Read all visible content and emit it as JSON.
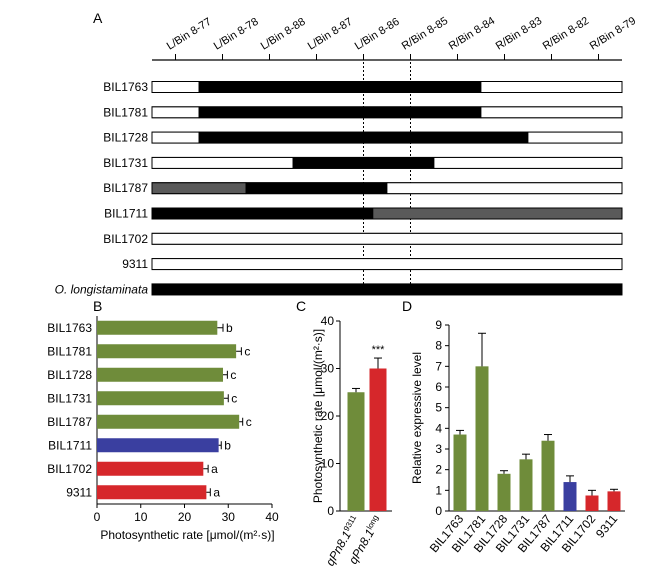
{
  "panelA": {
    "letter": "A",
    "markers": [
      "L/Bin 8-77",
      "L/Bin 8-78",
      "L/Bin 8-88",
      "L/Bin 8-87",
      "L/Bin 8-86",
      "R/Bin 8-85",
      "R/Bin 8-84",
      "R/Bin 8-83",
      "R/Bin 8-82",
      "R/Bin 8-79"
    ],
    "lines": [
      {
        "name": "BIL1763",
        "italic": false,
        "segments": [
          {
            "from": 0,
            "to": 1,
            "color": "white"
          },
          {
            "from": 1,
            "to": 7,
            "color": "black"
          },
          {
            "from": 7,
            "to": 10,
            "color": "white"
          }
        ]
      },
      {
        "name": "BIL1781",
        "italic": false,
        "segments": [
          {
            "from": 0,
            "to": 1,
            "color": "white"
          },
          {
            "from": 1,
            "to": 7,
            "color": "black"
          },
          {
            "from": 7,
            "to": 10,
            "color": "white"
          }
        ]
      },
      {
        "name": "BIL1728",
        "italic": false,
        "segments": [
          {
            "from": 0,
            "to": 1,
            "color": "white"
          },
          {
            "from": 1,
            "to": 8,
            "color": "black"
          },
          {
            "from": 8,
            "to": 10,
            "color": "white"
          }
        ]
      },
      {
        "name": "BIL1731",
        "italic": false,
        "segments": [
          {
            "from": 0,
            "to": 3,
            "color": "white"
          },
          {
            "from": 3,
            "to": 6,
            "color": "black"
          },
          {
            "from": 6,
            "to": 10,
            "color": "white"
          }
        ]
      },
      {
        "name": "BIL1787",
        "italic": false,
        "segments": [
          {
            "from": 0,
            "to": 2,
            "color": "gray"
          },
          {
            "from": 2,
            "to": 5,
            "color": "black"
          },
          {
            "from": 5,
            "to": 10,
            "color": "white"
          }
        ]
      },
      {
        "name": "BIL1711",
        "italic": false,
        "segments": [
          {
            "from": 0,
            "to": 4.7,
            "color": "black"
          },
          {
            "from": 4.7,
            "to": 10,
            "color": "gray"
          }
        ]
      },
      {
        "name": "BIL1702",
        "italic": false,
        "segments": [
          {
            "from": 0,
            "to": 10,
            "color": "white"
          }
        ]
      },
      {
        "name": "9311",
        "italic": false,
        "segments": [
          {
            "from": 0,
            "to": 10,
            "color": "white"
          }
        ]
      },
      {
        "name": "O. longistaminata",
        "italic": true,
        "segments": [
          {
            "from": 0,
            "to": 10,
            "color": "black"
          }
        ]
      }
    ],
    "colors": {
      "white": "#ffffff",
      "black": "#000000",
      "gray": "#5a5a5a"
    }
  },
  "panelB": {
    "letter": "B",
    "chart_data": {
      "type": "bar",
      "orientation": "horizontal",
      "categories": [
        "BIL1763",
        "BIL1781",
        "BIL1728",
        "BIL1731",
        "BIL1787",
        "BIL1711",
        "BIL1702",
        "9311"
      ],
      "values": [
        27.5,
        31.8,
        28.8,
        29.0,
        32.5,
        27.8,
        24.3,
        25.0
      ],
      "errors": [
        1.3,
        1.2,
        1.0,
        1.0,
        0.8,
        0.6,
        1.1,
        0.9
      ],
      "letters": [
        "b",
        "c",
        "c",
        "c",
        "c",
        "b",
        "a",
        "a"
      ],
      "colors": [
        "#6f8c3a",
        "#6f8c3a",
        "#6f8c3a",
        "#6f8c3a",
        "#6f8c3a",
        "#3a3fa0",
        "#d6272b",
        "#d6272b"
      ],
      "xlabel": "Photosynthetic rate [μmol/(m²·s)]",
      "xlim": [
        0,
        40
      ],
      "ticks": [
        "0",
        "10",
        "20",
        "30",
        "40"
      ]
    }
  },
  "panelC": {
    "letter": "C",
    "chart_data": {
      "type": "bar",
      "categories": [
        {
          "base": "qPn8.1",
          "sup": "9311"
        },
        {
          "base": "qPn8.1",
          "sup": "long"
        }
      ],
      "values": [
        25.0,
        30.0
      ],
      "errors": [
        0.8,
        2.2
      ],
      "colors": [
        "#6f8c3a",
        "#d6272b"
      ],
      "significance": "***",
      "ylabel": "Photosynthetic rate [μmol/(m²·s)]",
      "ylim": [
        0,
        40
      ],
      "ticks": [
        "0",
        "10",
        "20",
        "30",
        "40"
      ]
    }
  },
  "panelD": {
    "letter": "D",
    "chart_data": {
      "type": "bar",
      "categories": [
        "BIL1763",
        "BIL1781",
        "BIL1728",
        "BIL1731",
        "BIL1787",
        "BIL1711",
        "BIL1702",
        "9311"
      ],
      "values": [
        3.7,
        7.0,
        1.8,
        2.5,
        3.4,
        1.4,
        0.75,
        0.95
      ],
      "errors": [
        0.2,
        1.6,
        0.15,
        0.25,
        0.3,
        0.3,
        0.25,
        0.1
      ],
      "colors": [
        "#6f8c3a",
        "#6f8c3a",
        "#6f8c3a",
        "#6f8c3a",
        "#6f8c3a",
        "#3a3fa0",
        "#d6272b",
        "#d6272b"
      ],
      "ylabel": "Relative expressive level",
      "ylim": [
        0,
        9
      ],
      "ticks": [
        "0",
        "1",
        "2",
        "3",
        "4",
        "5",
        "6",
        "7",
        "8",
        "9"
      ]
    }
  }
}
